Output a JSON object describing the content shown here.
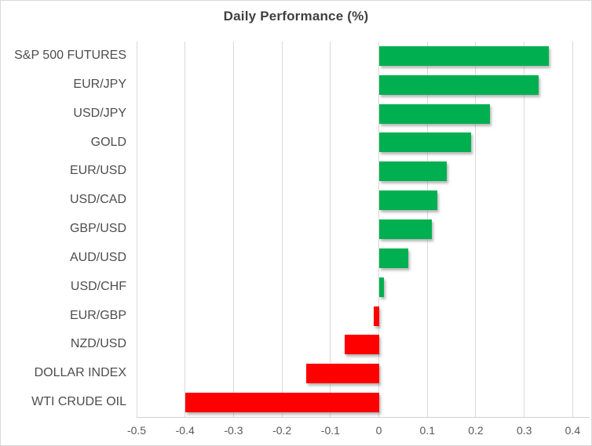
{
  "chart_data": {
    "type": "bar",
    "orientation": "horizontal",
    "title": "Daily Performance (%)",
    "categories": [
      "S&P 500 FUTURES",
      "EUR/JPY",
      "USD/JPY",
      "GOLD",
      "EUR/USD",
      "USD/CAD",
      "GBP/USD",
      "AUD/USD",
      "USD/CHF",
      "EUR/GBP",
      "NZD/USD",
      "DOLLAR INDEX",
      "WTI CRUDE OIL"
    ],
    "values": [
      0.35,
      0.33,
      0.23,
      0.19,
      0.14,
      0.12,
      0.11,
      0.06,
      0.01,
      -0.01,
      -0.07,
      -0.15,
      -0.4
    ],
    "xtick_values": [
      -0.5,
      -0.4,
      -0.3,
      -0.2,
      -0.1,
      0,
      0.1,
      0.2,
      0.3,
      0.4
    ],
    "xtick_labels": [
      "-0.5",
      "-0.4",
      "-0.3",
      "-0.2",
      "-0.1",
      "0",
      "0.1",
      "0.2",
      "0.3",
      "0.4"
    ],
    "xlim": [
      -0.5,
      0.435
    ],
    "grid": true,
    "legend": false,
    "positive_color": "#00B050",
    "negative_color": "#FF0000",
    "gridline_color": "#D9D9D9"
  }
}
